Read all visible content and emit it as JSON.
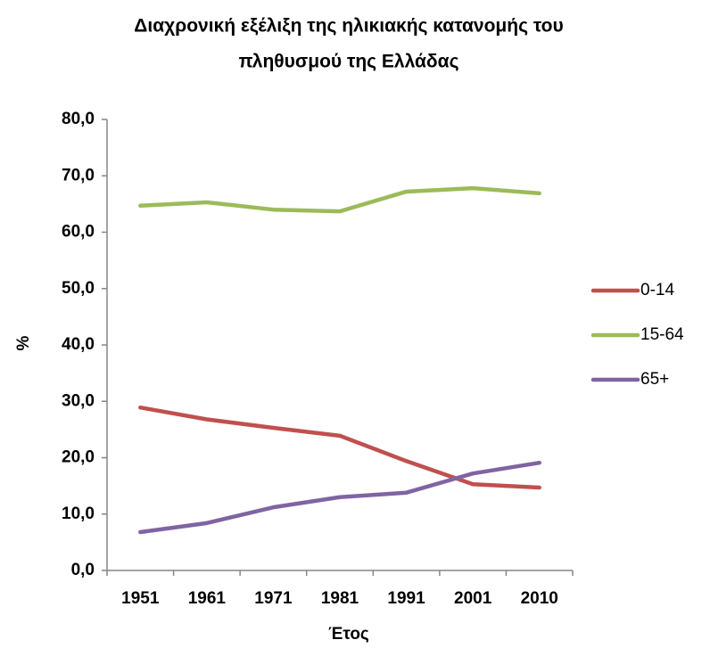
{
  "chart_data": {
    "type": "line",
    "title": [
      "Διαχρονική εξέλιξη της ηλικιακής κατανομής του",
      "πληθυσμού της Ελλάδας"
    ],
    "x_label": "Έτος",
    "y_label": "%",
    "categories": [
      "1951",
      "1961",
      "1971",
      "1981",
      "1991",
      "2001",
      "2010"
    ],
    "series": [
      {
        "name": "0-14",
        "color": "#c0504d",
        "values": [
          28.9,
          26.8,
          25.3,
          23.9,
          19.4,
          15.3,
          14.7
        ]
      },
      {
        "name": "15-64",
        "color": "#9bbb59",
        "values": [
          64.7,
          65.3,
          64.0,
          63.7,
          67.2,
          67.8,
          66.9
        ]
      },
      {
        "name": "65+",
        "color": "#8064a2",
        "values": [
          6.8,
          8.4,
          11.2,
          13.0,
          13.8,
          17.2,
          19.1
        ]
      }
    ],
    "ylim": [
      0,
      80
    ],
    "yticks": [
      {
        "value": 0,
        "label": "0,0"
      },
      {
        "value": 10,
        "label": "10,0"
      },
      {
        "value": 20,
        "label": "20,0"
      },
      {
        "value": 30,
        "label": "30,0"
      },
      {
        "value": 40,
        "label": "40,0"
      },
      {
        "value": 50,
        "label": "50,0"
      },
      {
        "value": 60,
        "label": "60,0"
      },
      {
        "value": 70,
        "label": "70,0"
      },
      {
        "value": 80,
        "label": "80,0"
      }
    ],
    "legend": "right",
    "grid": false
  }
}
